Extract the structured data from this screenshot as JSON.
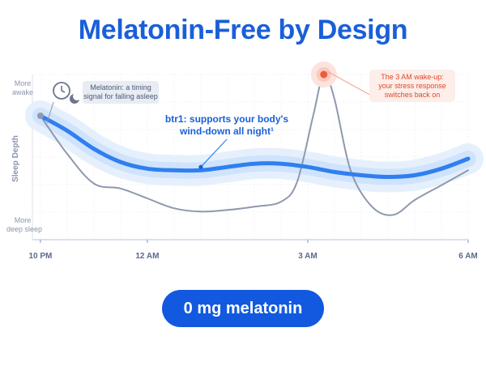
{
  "title": "Melatonin-Free by Design",
  "button_label": "0 mg melatonin",
  "colors": {
    "title": "#1a5fd8",
    "blue_line": "#2f7ff0",
    "blue_band": "#cfe3fc",
    "gray_line": "#8f99ad",
    "red": "#f05a3c"
  },
  "chart_data": {
    "type": "line",
    "ylabel": "Sleep Depth",
    "y_top_label": [
      "More",
      "awake"
    ],
    "y_bottom_label": [
      "More",
      "deep sleep"
    ],
    "x_ticks": [
      "10 PM",
      "12 AM",
      "3 AM",
      "6 AM"
    ],
    "x_tick_hours": [
      0,
      2,
      5,
      8
    ],
    "xlim": [
      -0.15,
      8
    ],
    "ylim": [
      0,
      1
    ],
    "grid": true,
    "series": [
      {
        "key": "btr1",
        "x": [
          0,
          0.5,
          1,
          1.5,
          2,
          2.5,
          3,
          3.5,
          4,
          4.5,
          5,
          5.5,
          6,
          6.5,
          7,
          7.5,
          8
        ],
        "values": [
          0.75,
          0.66,
          0.55,
          0.47,
          0.43,
          0.42,
          0.42,
          0.44,
          0.46,
          0.46,
          0.44,
          0.41,
          0.39,
          0.38,
          0.39,
          0.43,
          0.49
        ]
      },
      {
        "key": "melatonin",
        "x": [
          0,
          0.5,
          1,
          1.5,
          2,
          2.5,
          3,
          3.5,
          4,
          4.5,
          4.8,
          5.1,
          5.3,
          5.5,
          5.8,
          6.2,
          6.6,
          7,
          7.5,
          8
        ],
        "values": [
          0.75,
          0.52,
          0.34,
          0.31,
          0.25,
          0.19,
          0.17,
          0.18,
          0.2,
          0.23,
          0.35,
          0.75,
          1.0,
          0.85,
          0.42,
          0.2,
          0.15,
          0.24,
          0.33,
          0.42
        ]
      }
    ],
    "annotations": {
      "melatonin": [
        "Melatonin: a timing",
        "signal for falling asleep"
      ],
      "btr1": [
        "btr1: supports your body's",
        "wind-down all night¹"
      ],
      "wakeup": [
        "The 3 AM wake-up:",
        "your stress response",
        "switches back on"
      ]
    }
  }
}
